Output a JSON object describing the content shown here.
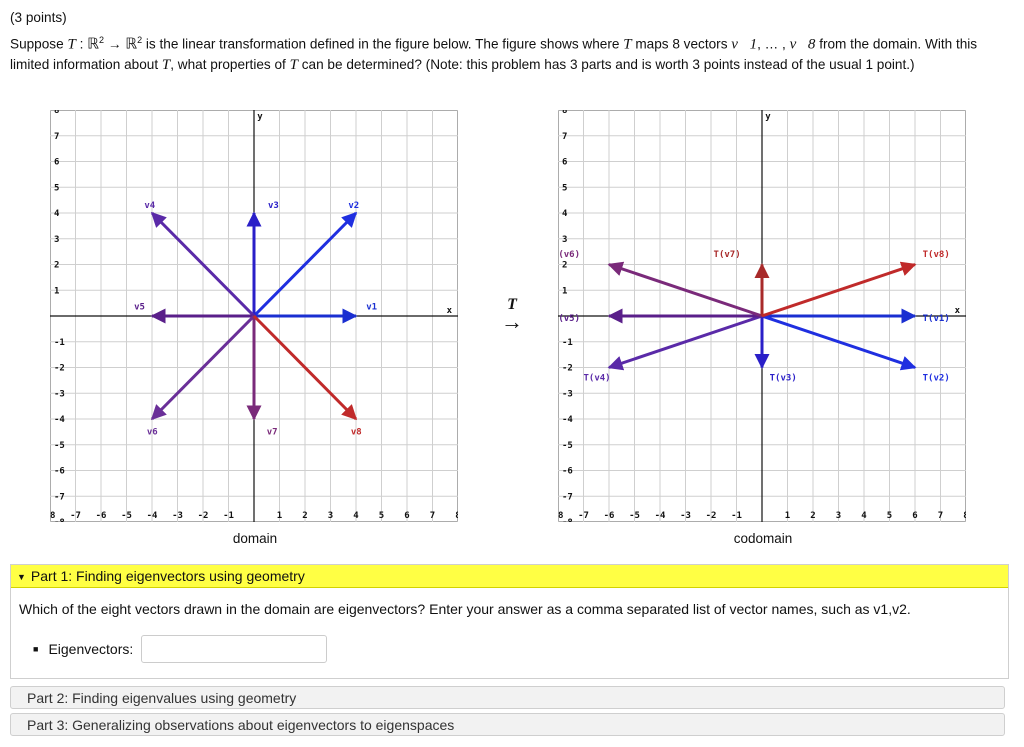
{
  "header": {
    "points": "(3 points)",
    "suppose": "Suppose",
    "T": "T",
    "colon": " : ",
    "R": "ℝ",
    "exp": "2",
    "arrow": " → ",
    "after_map": " is the linear transformation defined in the figure below. The figure shows where ",
    "maps_text": " maps 8 vectors ",
    "v1": "v⃗1",
    "dots": ", … , ",
    "v8": "v⃗8",
    "line1_end": " from the domain.",
    "line2": "With this limited information about ",
    "line2_end": ", what properties of ",
    "line2_end2": " can be determined? (Note: this problem has 3 parts and is worth 3 points instead of the usual 1 point.)"
  },
  "domain_graph": {
    "caption": "domain",
    "x_axis_label": "x",
    "y_axis_label": "y",
    "range": [
      -8,
      8
    ],
    "vectors": [
      {
        "name": "v1",
        "x": 4,
        "y": 0,
        "color": "#1a2fd1",
        "label_at": [
          4.4,
          0.25
        ]
      },
      {
        "name": "v2",
        "x": 4,
        "y": 4,
        "color": "#1f2fe0",
        "label_at": [
          3.7,
          4.2
        ]
      },
      {
        "name": "v3",
        "x": 0,
        "y": 4,
        "color": "#2a1fc8",
        "label_at": [
          0.55,
          4.2
        ]
      },
      {
        "name": "v4",
        "x": -4,
        "y": 4,
        "color": "#5a2aa8",
        "label_at": [
          -4.3,
          4.2
        ]
      },
      {
        "name": "v5",
        "x": -4,
        "y": 0,
        "color": "#5a1f8a",
        "label_at": [
          -4.7,
          0.25
        ]
      },
      {
        "name": "v6",
        "x": -4,
        "y": -4,
        "color": "#6a2f98",
        "label_at": [
          -4.2,
          -4.6
        ]
      },
      {
        "name": "v7",
        "x": 0,
        "y": -4,
        "color": "#7a2a7a",
        "label_at": [
          0.5,
          -4.6
        ]
      },
      {
        "name": "v8",
        "x": 4,
        "y": -4,
        "color": "#c02a2a",
        "label_at": [
          3.8,
          -4.6
        ]
      }
    ]
  },
  "codomain_graph": {
    "caption": "codomain",
    "x_axis_label": "x",
    "y_axis_label": "y",
    "range": [
      -8,
      8
    ],
    "vectors": [
      {
        "name": "T(v1)",
        "x": 6,
        "y": 0,
        "color": "#1a2fd1",
        "label_at": [
          6.3,
          -0.2
        ]
      },
      {
        "name": "T(v2)",
        "x": 6,
        "y": -2,
        "color": "#1f2fe0",
        "label_at": [
          6.3,
          -2.5
        ]
      },
      {
        "name": "T(v3)",
        "x": 0,
        "y": -2,
        "color": "#2a1fc8",
        "label_at": [
          0.3,
          -2.5
        ]
      },
      {
        "name": "T(v4)",
        "x": -6,
        "y": -2,
        "color": "#5a2aa8",
        "label_at": [
          -7.0,
          -2.5
        ]
      },
      {
        "name": "T(v5)",
        "x": -6,
        "y": 0,
        "color": "#5a1f8a",
        "label_at": [
          -8.2,
          -0.2
        ]
      },
      {
        "name": "T(v6)",
        "x": -6,
        "y": 2,
        "color": "#7a2a7a",
        "label_at": [
          -8.2,
          2.3
        ]
      },
      {
        "name": "T(v7)",
        "x": 0,
        "y": 2,
        "color": "#a82a2a",
        "label_at": [
          -1.9,
          2.3
        ]
      },
      {
        "name": "T(v8)",
        "x": 6,
        "y": 2,
        "color": "#c02a2a",
        "label_at": [
          6.3,
          2.3
        ]
      }
    ]
  },
  "map_label": {
    "T": "T",
    "arrow": "→"
  },
  "part1": {
    "caret": "▼",
    "title": "Part 1: Finding eigenvectors using geometry",
    "question": "Which of the eight vectors drawn in the domain are eigenvectors? Enter your answer as a comma separated list of vector names, such as v1,v2.",
    "bullet": "■",
    "eigen_label": "Eigenvectors:",
    "eigen_value": ""
  },
  "part2": {
    "title": "Part 2: Finding eigenvalues using geometry"
  },
  "part3": {
    "title": "Part 3: Generalizing observations about eigenvectors to eigenspaces"
  }
}
